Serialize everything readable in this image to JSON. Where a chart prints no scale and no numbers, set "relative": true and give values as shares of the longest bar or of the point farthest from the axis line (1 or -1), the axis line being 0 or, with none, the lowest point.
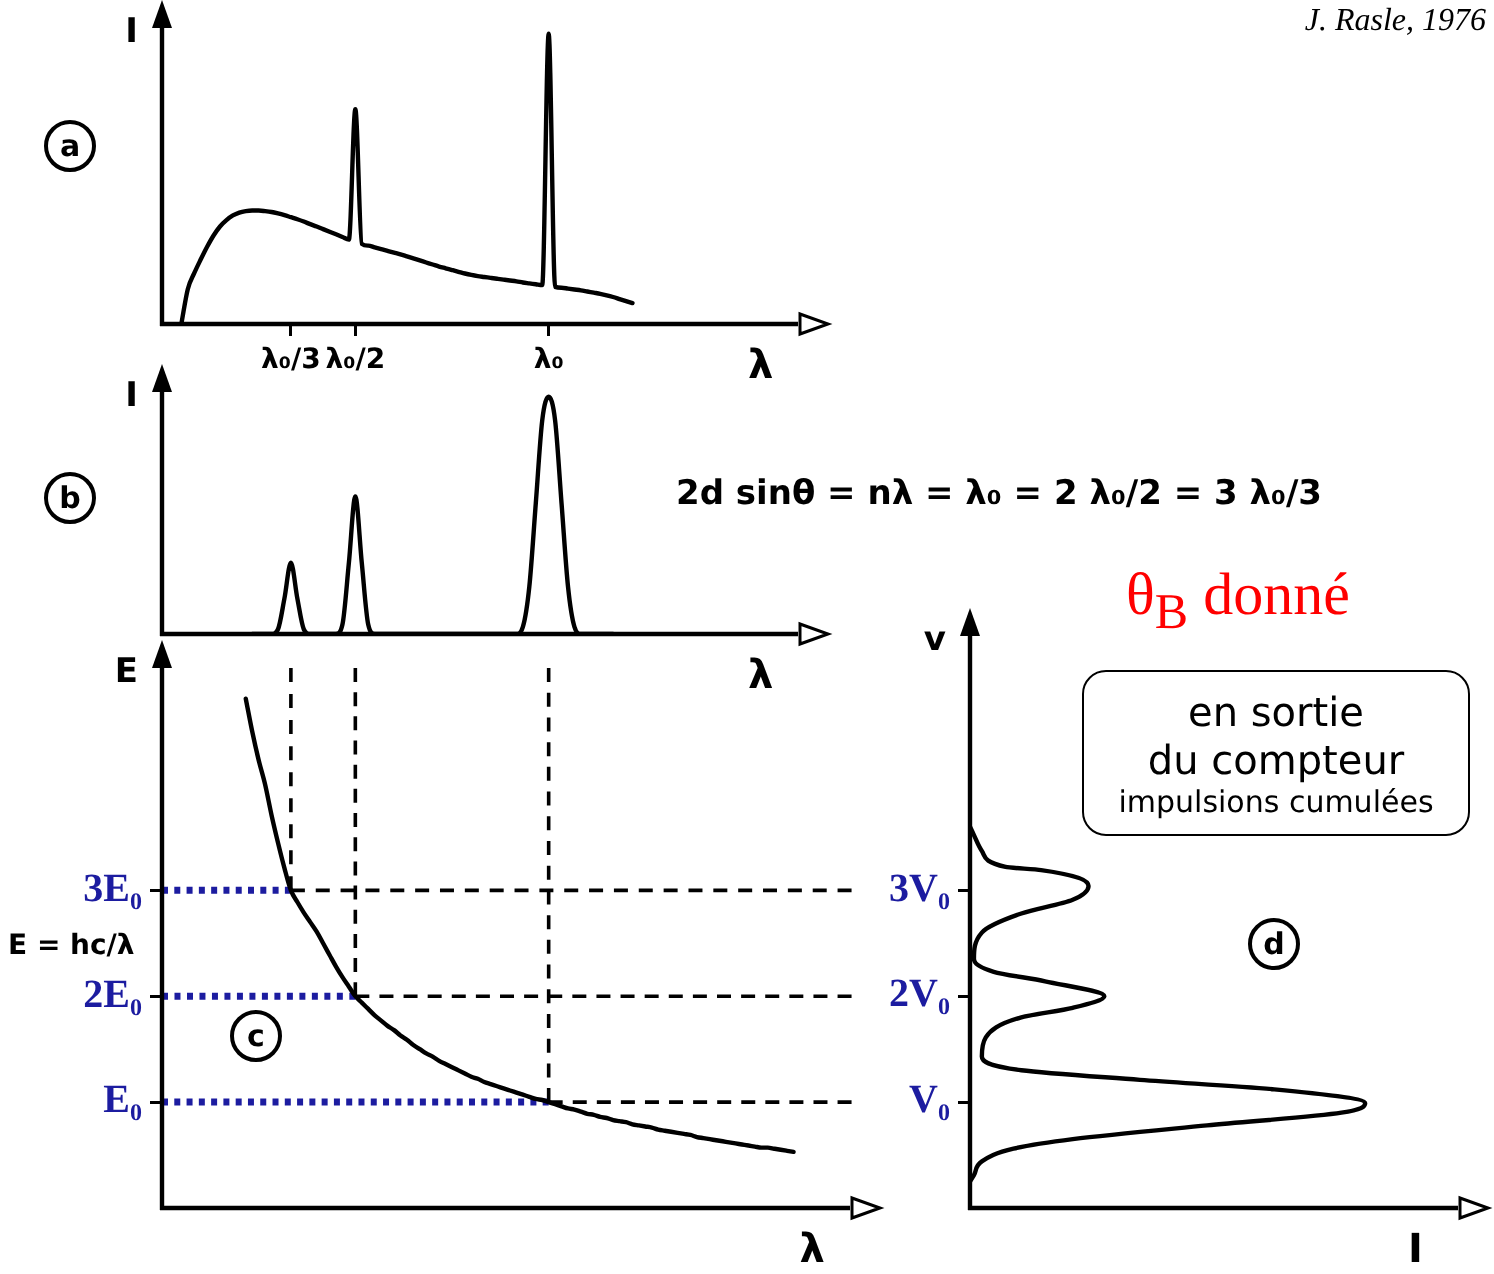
{
  "chart_data": [
    {
      "type": "line",
      "relative": true,
      "xlabel": "λ",
      "ylabel": "I",
      "annotations": [
        "a",
        "J. Rasle, 1976"
      ],
      "categories": [
        null,
        null,
        null,
        null,
        null,
        null,
        null,
        null,
        null,
        null,
        null,
        null,
        null,
        null,
        null,
        null,
        null,
        null,
        null,
        null,
        "λ₀/3",
        null,
        null,
        null,
        null,
        null,
        null,
        null,
        null,
        null,
        "λ₀/2",
        null,
        null,
        null,
        null,
        null,
        null,
        null,
        null,
        null,
        null,
        null,
        null,
        null,
        null,
        null,
        null,
        null,
        null,
        null,
        null,
        null,
        null,
        null,
        null,
        null,
        null,
        null,
        null,
        null,
        "λ₀",
        null,
        null,
        null,
        null,
        null,
        null,
        null,
        null,
        null,
        null,
        null,
        null,
        null,
        null,
        null,
        null,
        null,
        null,
        null,
        null,
        null,
        null,
        null,
        null,
        null,
        null,
        null,
        null,
        null,
        null,
        null,
        null,
        null,
        null,
        null,
        null,
        null,
        null,
        null
      ],
      "series": [
        {
          "color": "#000000",
          "values": [
            null,
            null,
            null,
            0,
            0.12,
            0.175,
            0.222,
            0.266,
            0.305,
            0.336,
            0.358,
            0.374,
            0.384,
            0.389,
            0.391,
            0.391,
            0.389,
            0.386,
            0.381,
            0.375,
            0.368,
            0.361,
            0.353,
            0.344,
            0.336,
            0.327,
            0.318,
            0.309,
            0.3,
            0.291,
            0.74,
            0.276,
            0.27,
            0.264,
            0.258,
            0.252,
            0.246,
            0.24,
            0.233,
            0.226,
            0.219,
            0.212,
            0.205,
            0.198,
            0.192,
            0.186,
            0.18,
            0.174,
            0.169,
            0.165,
            0.162,
            0.159,
            0.156,
            0.153,
            0.15,
            0.147,
            0.143,
            0.14,
            0.137,
            0.134,
            1,
            0.128,
            0.125,
            0.122,
            0.119,
            0.116,
            0.112,
            0.108,
            0.104,
            0.099,
            0.093,
            0.086,
            0.079,
            0.072,
            null,
            null,
            null,
            null,
            null,
            null,
            null,
            null,
            null,
            null,
            null,
            null,
            null,
            null,
            null,
            null,
            null,
            null,
            null,
            null,
            null,
            null,
            null,
            null,
            null,
            null
          ]
        }
      ]
    },
    {
      "type": "line",
      "relative": true,
      "xlabel": "λ",
      "ylabel": "I",
      "tick_labels": false,
      "annotations": [
        "b",
        "2d sinθ = nλ = λ₀ = 2 λ₀/2 = 3 λ₀/3"
      ],
      "categories": [
        null,
        null,
        null,
        null,
        null,
        null,
        null,
        null,
        null,
        null,
        null,
        null,
        null,
        null,
        null,
        null,
        null,
        null,
        null,
        null,
        "λ₀/3",
        null,
        null,
        null,
        null,
        null,
        null,
        null,
        null,
        null,
        "λ₀/2",
        null,
        null,
        null,
        null,
        null,
        null,
        null,
        null,
        null,
        null,
        null,
        null,
        null,
        null,
        null,
        null,
        null,
        null,
        null,
        null,
        null,
        null,
        null,
        null,
        null,
        null,
        null,
        null,
        null,
        "λ₀",
        null,
        null,
        null,
        null,
        null,
        null,
        null,
        null,
        null,
        null,
        null,
        null,
        null,
        null,
        null,
        null,
        null,
        null,
        null,
        null,
        null,
        null,
        null,
        null,
        null,
        null,
        null,
        null,
        null,
        null,
        null,
        null,
        null,
        null,
        null,
        null,
        null,
        null,
        null
      ],
      "series": [
        {
          "color": "#000000",
          "values": [
            null,
            null,
            null,
            null,
            null,
            null,
            null,
            null,
            null,
            null,
            null,
            null,
            null,
            null,
            0,
            0,
            0,
            0,
            0.02,
            0.15,
            0.3,
            0.15,
            0.02,
            0,
            0,
            0,
            0,
            0,
            0.04,
            0.3,
            0.58,
            0.3,
            0.04,
            0,
            0,
            0,
            0,
            0,
            0,
            0,
            0,
            0,
            0,
            0,
            0,
            0,
            0,
            0,
            0,
            0,
            0,
            0,
            0,
            0,
            0,
            0,
            0.03,
            0.2,
            0.55,
            0.9,
            1,
            0.9,
            0.55,
            0.2,
            0.03,
            0,
            0,
            0,
            0,
            0,
            0,
            null,
            null,
            null,
            null,
            null,
            null,
            null,
            null,
            null,
            null,
            null,
            null,
            null,
            null,
            null,
            null,
            null,
            null,
            null,
            null,
            null,
            null,
            null,
            null,
            null,
            null,
            null,
            null,
            null
          ]
        }
      ]
    },
    {
      "type": "line",
      "xlabel": "λ",
      "ylabel": "E",
      "ylim": [
        0,
        5.1
      ],
      "yticks": [
        {
          "value": 1,
          "label": "E₀"
        },
        {
          "value": 2,
          "label": "2E₀"
        },
        {
          "value": 3,
          "label": "3E₀"
        }
      ],
      "tick_labels": "y",
      "annotations": [
        "c",
        "E = hc/λ"
      ],
      "categories": [
        null,
        null,
        null,
        null,
        null,
        null,
        null,
        null,
        null,
        null,
        null,
        null,
        null,
        null,
        null,
        null,
        null,
        null,
        null,
        null,
        "λ₀/3",
        null,
        null,
        null,
        null,
        null,
        null,
        null,
        null,
        null,
        "λ₀/2",
        null,
        null,
        null,
        null,
        null,
        null,
        null,
        null,
        null,
        null,
        null,
        null,
        null,
        null,
        null,
        null,
        null,
        null,
        null,
        null,
        null,
        null,
        null,
        null,
        null,
        null,
        null,
        null,
        null,
        "λ₀",
        null,
        null,
        null,
        null,
        null,
        null,
        null,
        null,
        null,
        null,
        null,
        null,
        null,
        null,
        null,
        null,
        null,
        null,
        null,
        null,
        null,
        null,
        null,
        null,
        null,
        null,
        null,
        null,
        null,
        null,
        null,
        null,
        null,
        null,
        null,
        null,
        null,
        null,
        null,
        null,
        null,
        null,
        null,
        null,
        null,
        null,
        null
      ],
      "ref_lines": [
        {
          "axis": "x",
          "value": "λ₀/3",
          "line_style": "dashed",
          "color": "#000000"
        },
        {
          "axis": "x",
          "value": "λ₀/2",
          "line_style": "dashed",
          "color": "#000000"
        },
        {
          "axis": "x",
          "value": "λ₀",
          "line_style": "dashed",
          "color": "#000000"
        }
      ],
      "series": [
        {
          "color": "#000000",
          "values": [
            null,
            null,
            null,
            null,
            null,
            null,
            null,
            null,
            null,
            null,
            null,
            null,
            null,
            4.81,
            4.5,
            4.23,
            4.0,
            3.71,
            3.45,
            3.21,
            3.0,
            2.89,
            2.79,
            2.7,
            2.61,
            2.5,
            2.39,
            2.28,
            2.18,
            2.09,
            2.0,
            1.94,
            1.88,
            1.82,
            1.77,
            1.72,
            1.68,
            1.63,
            1.59,
            1.54,
            1.5,
            1.46,
            1.43,
            1.39,
            1.36,
            1.33,
            1.3,
            1.27,
            1.24,
            1.22,
            1.19,
            1.17,
            1.15,
            1.13,
            1.11,
            1.09,
            1.07,
            1.05,
            1.03,
            1.02,
            1.0,
            0.98,
            0.96,
            0.94,
            0.93,
            0.91,
            0.89,
            0.88,
            0.86,
            0.85,
            0.83,
            0.82,
            0.81,
            0.79,
            0.78,
            0.77,
            0.76,
            0.74,
            0.73,
            0.72,
            0.71,
            0.7,
            0.69,
            0.67,
            0.66,
            0.65,
            0.64,
            0.63,
            0.62,
            0.61,
            0.6,
            0.59,
            0.58,
            0.57,
            0.57,
            0.56,
            0.55,
            0.54,
            0.53,
            null,
            null,
            null,
            null,
            null,
            null,
            null,
            null,
            null
          ]
        },
        {
          "color": "#000000",
          "line_style": "dashed",
          "values": [
            null,
            null,
            null,
            null,
            null,
            null,
            null,
            null,
            null,
            null,
            null,
            null,
            null,
            null,
            null,
            null,
            null,
            null,
            null,
            null,
            3,
            3,
            3,
            3,
            3,
            3,
            3,
            3,
            3,
            3,
            3,
            3,
            3,
            3,
            3,
            3,
            3,
            3,
            3,
            3,
            3,
            3,
            3,
            3,
            3,
            3,
            3,
            3,
            3,
            3,
            3,
            3,
            3,
            3,
            3,
            3,
            3,
            3,
            3,
            3,
            3,
            3,
            3,
            3,
            3,
            3,
            3,
            3,
            3,
            3,
            3,
            3,
            3,
            3,
            3,
            3,
            3,
            3,
            3,
            3,
            3,
            3,
            3,
            3,
            3,
            3,
            3,
            3,
            3,
            3,
            3,
            3,
            3,
            3,
            3,
            3,
            3,
            3,
            3,
            3,
            3,
            3,
            3,
            3,
            3,
            3,
            3,
            3
          ]
        },
        {
          "color": "#000000",
          "line_style": "dashed",
          "values": [
            null,
            null,
            null,
            null,
            null,
            null,
            null,
            null,
            null,
            null,
            null,
            null,
            null,
            null,
            null,
            null,
            null,
            null,
            null,
            null,
            null,
            null,
            null,
            null,
            null,
            null,
            null,
            null,
            null,
            null,
            2,
            2,
            2,
            2,
            2,
            2,
            2,
            2,
            2,
            2,
            2,
            2,
            2,
            2,
            2,
            2,
            2,
            2,
            2,
            2,
            2,
            2,
            2,
            2,
            2,
            2,
            2,
            2,
            2,
            2,
            2,
            2,
            2,
            2,
            2,
            2,
            2,
            2,
            2,
            2,
            2,
            2,
            2,
            2,
            2,
            2,
            2,
            2,
            2,
            2,
            2,
            2,
            2,
            2,
            2,
            2,
            2,
            2,
            2,
            2,
            2,
            2,
            2,
            2,
            2,
            2,
            2,
            2,
            2,
            2,
            2,
            2,
            2,
            2,
            2,
            2,
            2,
            2
          ]
        },
        {
          "color": "#000000",
          "line_style": "dashed",
          "values": [
            null,
            null,
            null,
            null,
            null,
            null,
            null,
            null,
            null,
            null,
            null,
            null,
            null,
            null,
            null,
            null,
            null,
            null,
            null,
            null,
            null,
            null,
            null,
            null,
            null,
            null,
            null,
            null,
            null,
            null,
            null,
            null,
            null,
            null,
            null,
            null,
            null,
            null,
            null,
            null,
            null,
            null,
            null,
            null,
            null,
            null,
            null,
            null,
            null,
            null,
            null,
            null,
            null,
            null,
            null,
            null,
            null,
            null,
            null,
            null,
            1,
            1,
            1,
            1,
            1,
            1,
            1,
            1,
            1,
            1,
            1,
            1,
            1,
            1,
            1,
            1,
            1,
            1,
            1,
            1,
            1,
            1,
            1,
            1,
            1,
            1,
            1,
            1,
            1,
            1,
            1,
            1,
            1,
            1,
            1,
            1,
            1,
            1,
            1,
            1,
            1,
            1,
            1,
            1,
            1,
            1,
            1,
            1
          ]
        },
        {
          "color": "#1c1ca0",
          "line_style": "dotted",
          "values": [
            3,
            3,
            3,
            3,
            3,
            3,
            3,
            3,
            3,
            3,
            3,
            3,
            3,
            3,
            3,
            3,
            3,
            3,
            3,
            3,
            3,
            null,
            null,
            null,
            null,
            null,
            null,
            null,
            null,
            null,
            null,
            null,
            null,
            null,
            null,
            null,
            null,
            null,
            null,
            null,
            null,
            null,
            null,
            null,
            null,
            null,
            null,
            null,
            null,
            null,
            null,
            null,
            null,
            null,
            null,
            null,
            null,
            null,
            null,
            null,
            null,
            null,
            null,
            null,
            null,
            null,
            null,
            null,
            null,
            null,
            null,
            null,
            null,
            null,
            null,
            null,
            null,
            null,
            null,
            null,
            null,
            null,
            null,
            null,
            null,
            null,
            null,
            null,
            null,
            null,
            null,
            null,
            null,
            null,
            null,
            null,
            null,
            null,
            null,
            null,
            null,
            null,
            null,
            null,
            null,
            null,
            null,
            null
          ]
        },
        {
          "color": "#1c1ca0",
          "line_style": "dotted",
          "values": [
            2,
            2,
            2,
            2,
            2,
            2,
            2,
            2,
            2,
            2,
            2,
            2,
            2,
            2,
            2,
            2,
            2,
            2,
            2,
            2,
            2,
            2,
            2,
            2,
            2,
            2,
            2,
            2,
            2,
            2,
            2,
            null,
            null,
            null,
            null,
            null,
            null,
            null,
            null,
            null,
            null,
            null,
            null,
            null,
            null,
            null,
            null,
            null,
            null,
            null,
            null,
            null,
            null,
            null,
            null,
            null,
            null,
            null,
            null,
            null,
            null,
            null,
            null,
            null,
            null,
            null,
            null,
            null,
            null,
            null,
            null,
            null,
            null,
            null,
            null,
            null,
            null,
            null,
            null,
            null,
            null,
            null,
            null,
            null,
            null,
            null,
            null,
            null,
            null,
            null,
            null,
            null,
            null,
            null,
            null,
            null,
            null,
            null,
            null,
            null,
            null,
            null,
            null,
            null,
            null,
            null,
            null,
            null
          ]
        },
        {
          "color": "#1c1ca0",
          "line_style": "dotted",
          "values": [
            1,
            1,
            1,
            1,
            1,
            1,
            1,
            1,
            1,
            1,
            1,
            1,
            1,
            1,
            1,
            1,
            1,
            1,
            1,
            1,
            1,
            1,
            1,
            1,
            1,
            1,
            1,
            1,
            1,
            1,
            1,
            1,
            1,
            1,
            1,
            1,
            1,
            1,
            1,
            1,
            1,
            1,
            1,
            1,
            1,
            1,
            1,
            1,
            1,
            1,
            1,
            1,
            1,
            1,
            1,
            1,
            1,
            1,
            1,
            1,
            1,
            null,
            null,
            null,
            null,
            null,
            null,
            null,
            null,
            null,
            null,
            null,
            null,
            null,
            null,
            null,
            null,
            null,
            null,
            null,
            null,
            null,
            null,
            null,
            null,
            null,
            null,
            null,
            null,
            null,
            null,
            null,
            null,
            null,
            null,
            null,
            null,
            null,
            null,
            null,
            null,
            null,
            null,
            null,
            null,
            null,
            null,
            null
          ]
        }
      ]
    },
    {
      "type": "line",
      "orientation": "horizontal",
      "relative": true,
      "xlabel": "I",
      "ylabel": "v",
      "ylim": [
        0,
        5.4
      ],
      "yticks": [
        {
          "value": 1,
          "label": "V₀"
        },
        {
          "value": 2,
          "label": "2V₀"
        },
        {
          "value": 3,
          "label": "3V₀"
        }
      ],
      "annotations": [
        "d",
        "θ$_{B}$ donné",
        "en sortie\ndu compteur",
        "impulsions cumulées"
      ],
      "series": [
        {
          "color": "#000000",
          "x": [
            0.25,
            0.31,
            0.44,
            0.56,
            0.65,
            0.78,
            0.9,
            0.99,
            1.12,
            1.21,
            1.3,
            1.43,
            1.61,
            1.8,
            1.89,
            2.0,
            2.14,
            2.23,
            2.35,
            2.6,
            2.78,
            2.91,
            3.04,
            3.19,
            3.22,
            3.37,
            3.52,
            3.6
          ],
          "values": [
            0,
            0.01,
            0.03,
            0.11,
            0.26,
            0.6,
            0.94,
            1.0,
            0.77,
            0.43,
            0.13,
            0.03,
            0.04,
            0.13,
            0.26,
            0.34,
            0.19,
            0.06,
            0.01,
            0.03,
            0.13,
            0.26,
            0.3,
            0.18,
            0.09,
            0.03,
            0.01,
            0
          ]
        }
      ]
    }
  ]
}
